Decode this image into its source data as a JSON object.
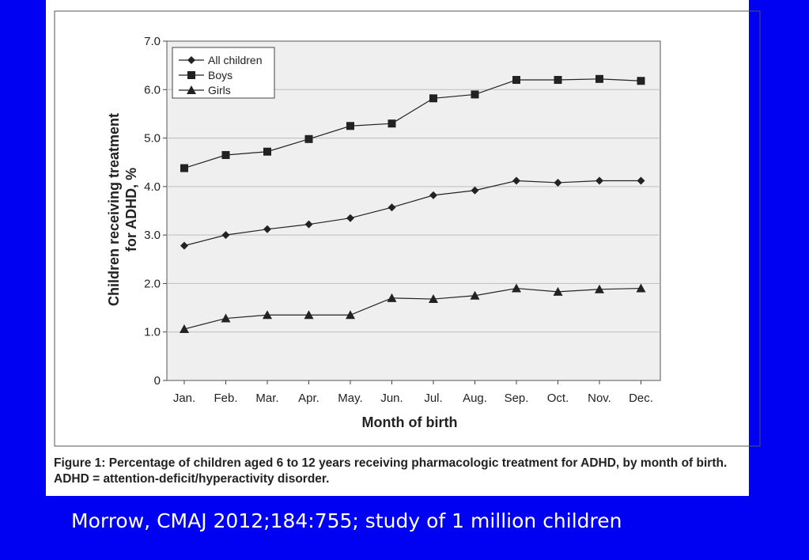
{
  "slide": {
    "background": "#0000f2",
    "citation": "Morrow, CMAJ 2012;184:755; study of 1 million children"
  },
  "figure": {
    "caption_label": "Figure 1:",
    "caption_text": "Percentage of children aged 6 to 12 years receiving pharmacologic treatment for ADHD, by month of birth. ADHD = attention-deficit/hyperactivity disorder."
  },
  "chart_data": {
    "type": "line",
    "title": "",
    "xlabel": "Month of birth",
    "ylabel_line1": "Children receiving treatment",
    "ylabel_line2": "for ADHD, %",
    "categories": [
      "Jan.",
      "Feb.",
      "Mar.",
      "Apr.",
      "May.",
      "Jun.",
      "Jul.",
      "Aug.",
      "Sep.",
      "Oct.",
      "Nov.",
      "Dec."
    ],
    "ylim": [
      0,
      7
    ],
    "yticks": [
      "0",
      "1.0",
      "2.0",
      "3.0",
      "4.0",
      "5.0",
      "6.0",
      "7.0"
    ],
    "grid": true,
    "legend_position": "top-left",
    "series": [
      {
        "name": "All children",
        "marker": "diamond",
        "values": [
          2.78,
          3.0,
          3.12,
          3.22,
          3.35,
          3.57,
          3.82,
          3.92,
          4.12,
          4.08,
          4.12,
          4.12
        ]
      },
      {
        "name": "Boys",
        "marker": "square",
        "values": [
          4.38,
          4.65,
          4.72,
          4.98,
          5.25,
          5.3,
          5.82,
          5.9,
          6.2,
          6.2,
          6.22,
          6.18
        ]
      },
      {
        "name": "Girls",
        "marker": "triangle",
        "values": [
          1.06,
          1.28,
          1.35,
          1.35,
          1.35,
          1.7,
          1.68,
          1.75,
          1.9,
          1.83,
          1.88,
          1.9
        ]
      }
    ],
    "colors": {
      "plot_background": "#efefef",
      "line": "#222222",
      "grid": "#bdbdbd"
    }
  }
}
